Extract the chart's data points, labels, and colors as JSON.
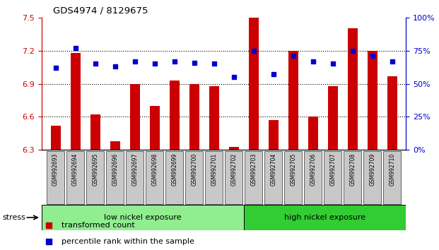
{
  "title": "GDS4974 / 8129675",
  "samples": [
    "GSM992693",
    "GSM992694",
    "GSM992695",
    "GSM992696",
    "GSM992697",
    "GSM992698",
    "GSM992699",
    "GSM992700",
    "GSM992701",
    "GSM992702",
    "GSM992703",
    "GSM992704",
    "GSM992705",
    "GSM992706",
    "GSM992707",
    "GSM992708",
    "GSM992709",
    "GSM992710"
  ],
  "transformed_count": [
    6.52,
    7.18,
    6.62,
    6.38,
    6.9,
    6.7,
    6.93,
    6.9,
    6.88,
    6.33,
    7.5,
    6.57,
    7.2,
    6.6,
    6.88,
    7.4,
    7.2,
    6.97
  ],
  "percentile_rank": [
    62,
    77,
    65,
    63,
    67,
    65,
    67,
    66,
    65,
    55,
    75,
    57,
    71,
    67,
    65,
    75,
    71,
    67
  ],
  "ylim_left": [
    6.3,
    7.5
  ],
  "ylim_right": [
    0,
    100
  ],
  "yticks_left": [
    6.3,
    6.6,
    6.9,
    7.2,
    7.5
  ],
  "yticks_right": [
    0,
    25,
    50,
    75,
    100
  ],
  "ytick_labels_right": [
    "0%",
    "25%",
    "50%",
    "75%",
    "100%"
  ],
  "hlines": [
    6.6,
    6.9,
    7.2
  ],
  "bar_color": "#cc0000",
  "dot_color": "#0000cc",
  "bar_bottom": 6.3,
  "group1_label": "low nickel exposure",
  "group2_label": "high nickel exposure",
  "group1_count": 10,
  "group2_count": 8,
  "group1_color": "#90ee90",
  "group2_color": "#32cd32",
  "stress_label": "stress",
  "legend1": "transformed count",
  "legend2": "percentile rank within the sample",
  "left_axis_color": "#cc0000",
  "right_axis_color": "#0000cc",
  "bg_xtick": "#c8c8c8"
}
